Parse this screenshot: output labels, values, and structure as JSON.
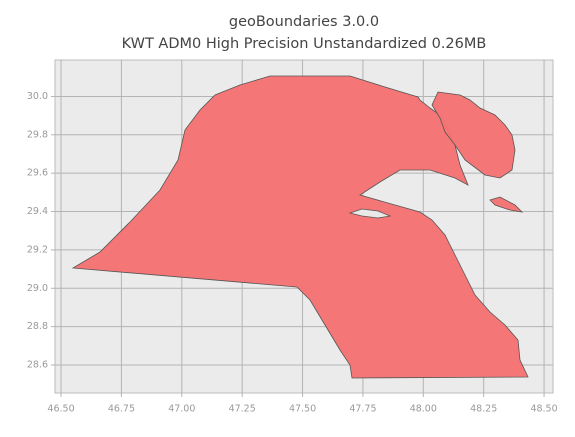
{
  "chart_data": {
    "type": "map",
    "title": "geoBoundaries 3.0.0",
    "subtitle": "KWT ADM0 High Precision Unstandardized 0.26MB",
    "xlim": [
      46.475,
      48.537
    ],
    "ylim": [
      28.454,
      30.19
    ],
    "xticks": [
      {
        "value": 46.5,
        "label": "46.50"
      },
      46.75,
      {
        "value": 47,
        "label": "47.00"
      },
      47.25,
      {
        "value": 47.5,
        "label": "47.50"
      },
      47.75,
      {
        "value": 48,
        "label": "48.00"
      },
      48.25,
      {
        "value": 48.5,
        "label": "48.50"
      }
    ],
    "yticks": [
      {
        "value": 28.6,
        "label": "28.6"
      },
      28.8,
      {
        "value": 29,
        "label": "29.0"
      },
      29.2,
      29.4,
      29.6,
      29.8,
      {
        "value": 30,
        "label": "30.0"
      }
    ],
    "grid": true,
    "color": "#f57373"
  }
}
